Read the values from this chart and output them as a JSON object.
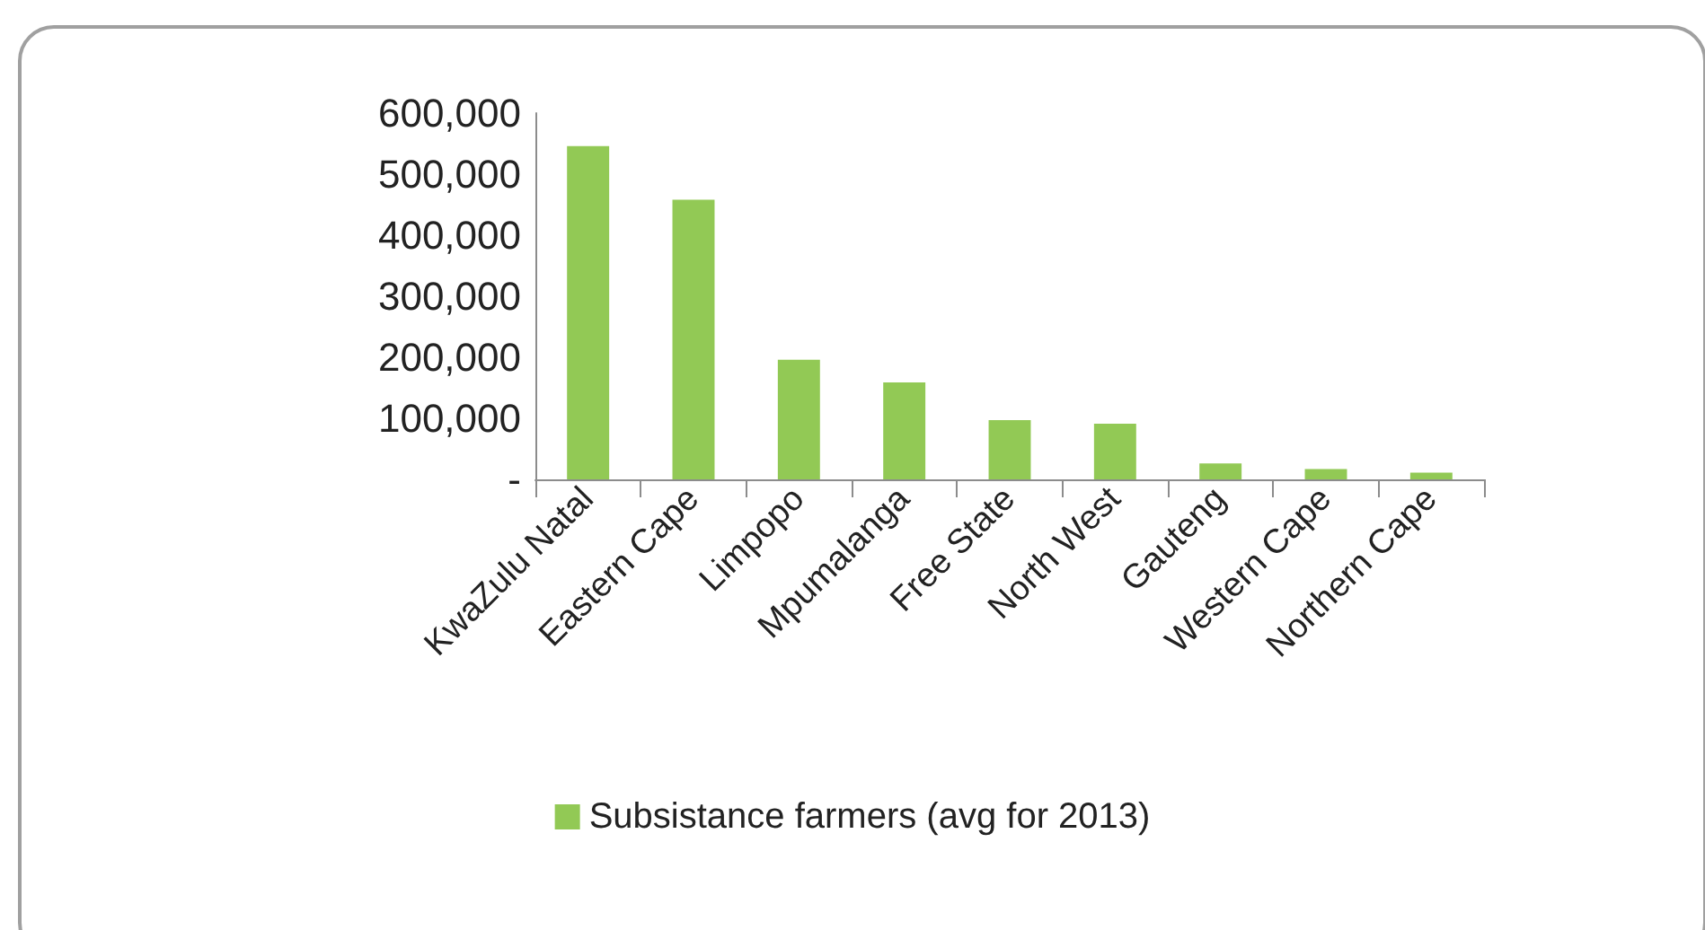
{
  "chart_data": {
    "type": "bar",
    "categories": [
      "KwaZulu Natal",
      "Eastern Cape",
      "Limpopo",
      "Mpumalanga",
      "Free State",
      "North West",
      "Gauteng",
      "Western Cape",
      "Northern Cape"
    ],
    "series": [
      {
        "name": "Subsistance farmers (avg for 2013)",
        "color": "#92c955",
        "values": [
          546000,
          458000,
          196000,
          159000,
          97000,
          91000,
          26000,
          17000,
          11000
        ]
      }
    ],
    "ylim": [
      0,
      600000
    ],
    "yticks": [
      {
        "value": 0,
        "label": "-"
      },
      {
        "value": 100000,
        "label": "100,000"
      },
      {
        "value": 200000,
        "label": "200,000"
      },
      {
        "value": 300000,
        "label": "300,000"
      },
      {
        "value": 400000,
        "label": "400,000"
      },
      {
        "value": 500000,
        "label": "500,000"
      },
      {
        "value": 600000,
        "label": "600,000"
      }
    ],
    "grid": false,
    "legend": "bottom"
  }
}
